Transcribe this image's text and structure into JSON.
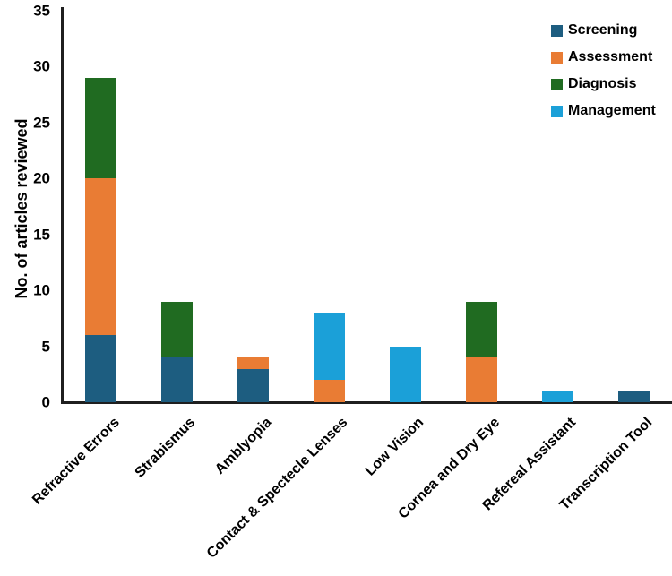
{
  "chart_data": {
    "type": "bar",
    "stacked": true,
    "title": "",
    "xlabel": "",
    "ylabel": "No. of articles reviewed",
    "ylim": [
      0,
      35
    ],
    "ytick_step": 5,
    "grid": false,
    "legend_position": "top-right",
    "background": "#ffffff",
    "axis_color": "#1f1f1f",
    "text_color": "#000000",
    "categories": [
      "Refractive Errors",
      "Strabismus",
      "Amblyopia",
      "Contact & Spectecle Lenses",
      "Low Vision",
      "Cornea and Dry Eye",
      "Refereal Assistant",
      "Transcription Tool"
    ],
    "series": [
      {
        "name": "Screening",
        "color": "#1d5d80",
        "values": [
          6,
          4,
          3,
          0,
          0,
          0,
          0,
          1
        ]
      },
      {
        "name": "Assessment",
        "color": "#e97c34",
        "values": [
          14,
          0,
          1,
          2,
          0,
          4,
          0,
          0
        ]
      },
      {
        "name": "Diagnosis",
        "color": "#206b21",
        "values": [
          9,
          5,
          0,
          0,
          0,
          5,
          0,
          0
        ]
      },
      {
        "name": "Management",
        "color": "#1ba0d8",
        "values": [
          0,
          0,
          0,
          6,
          5,
          0,
          1,
          0
        ]
      }
    ],
    "totals": [
      29,
      9,
      4,
      8,
      5,
      9,
      1,
      1
    ]
  }
}
